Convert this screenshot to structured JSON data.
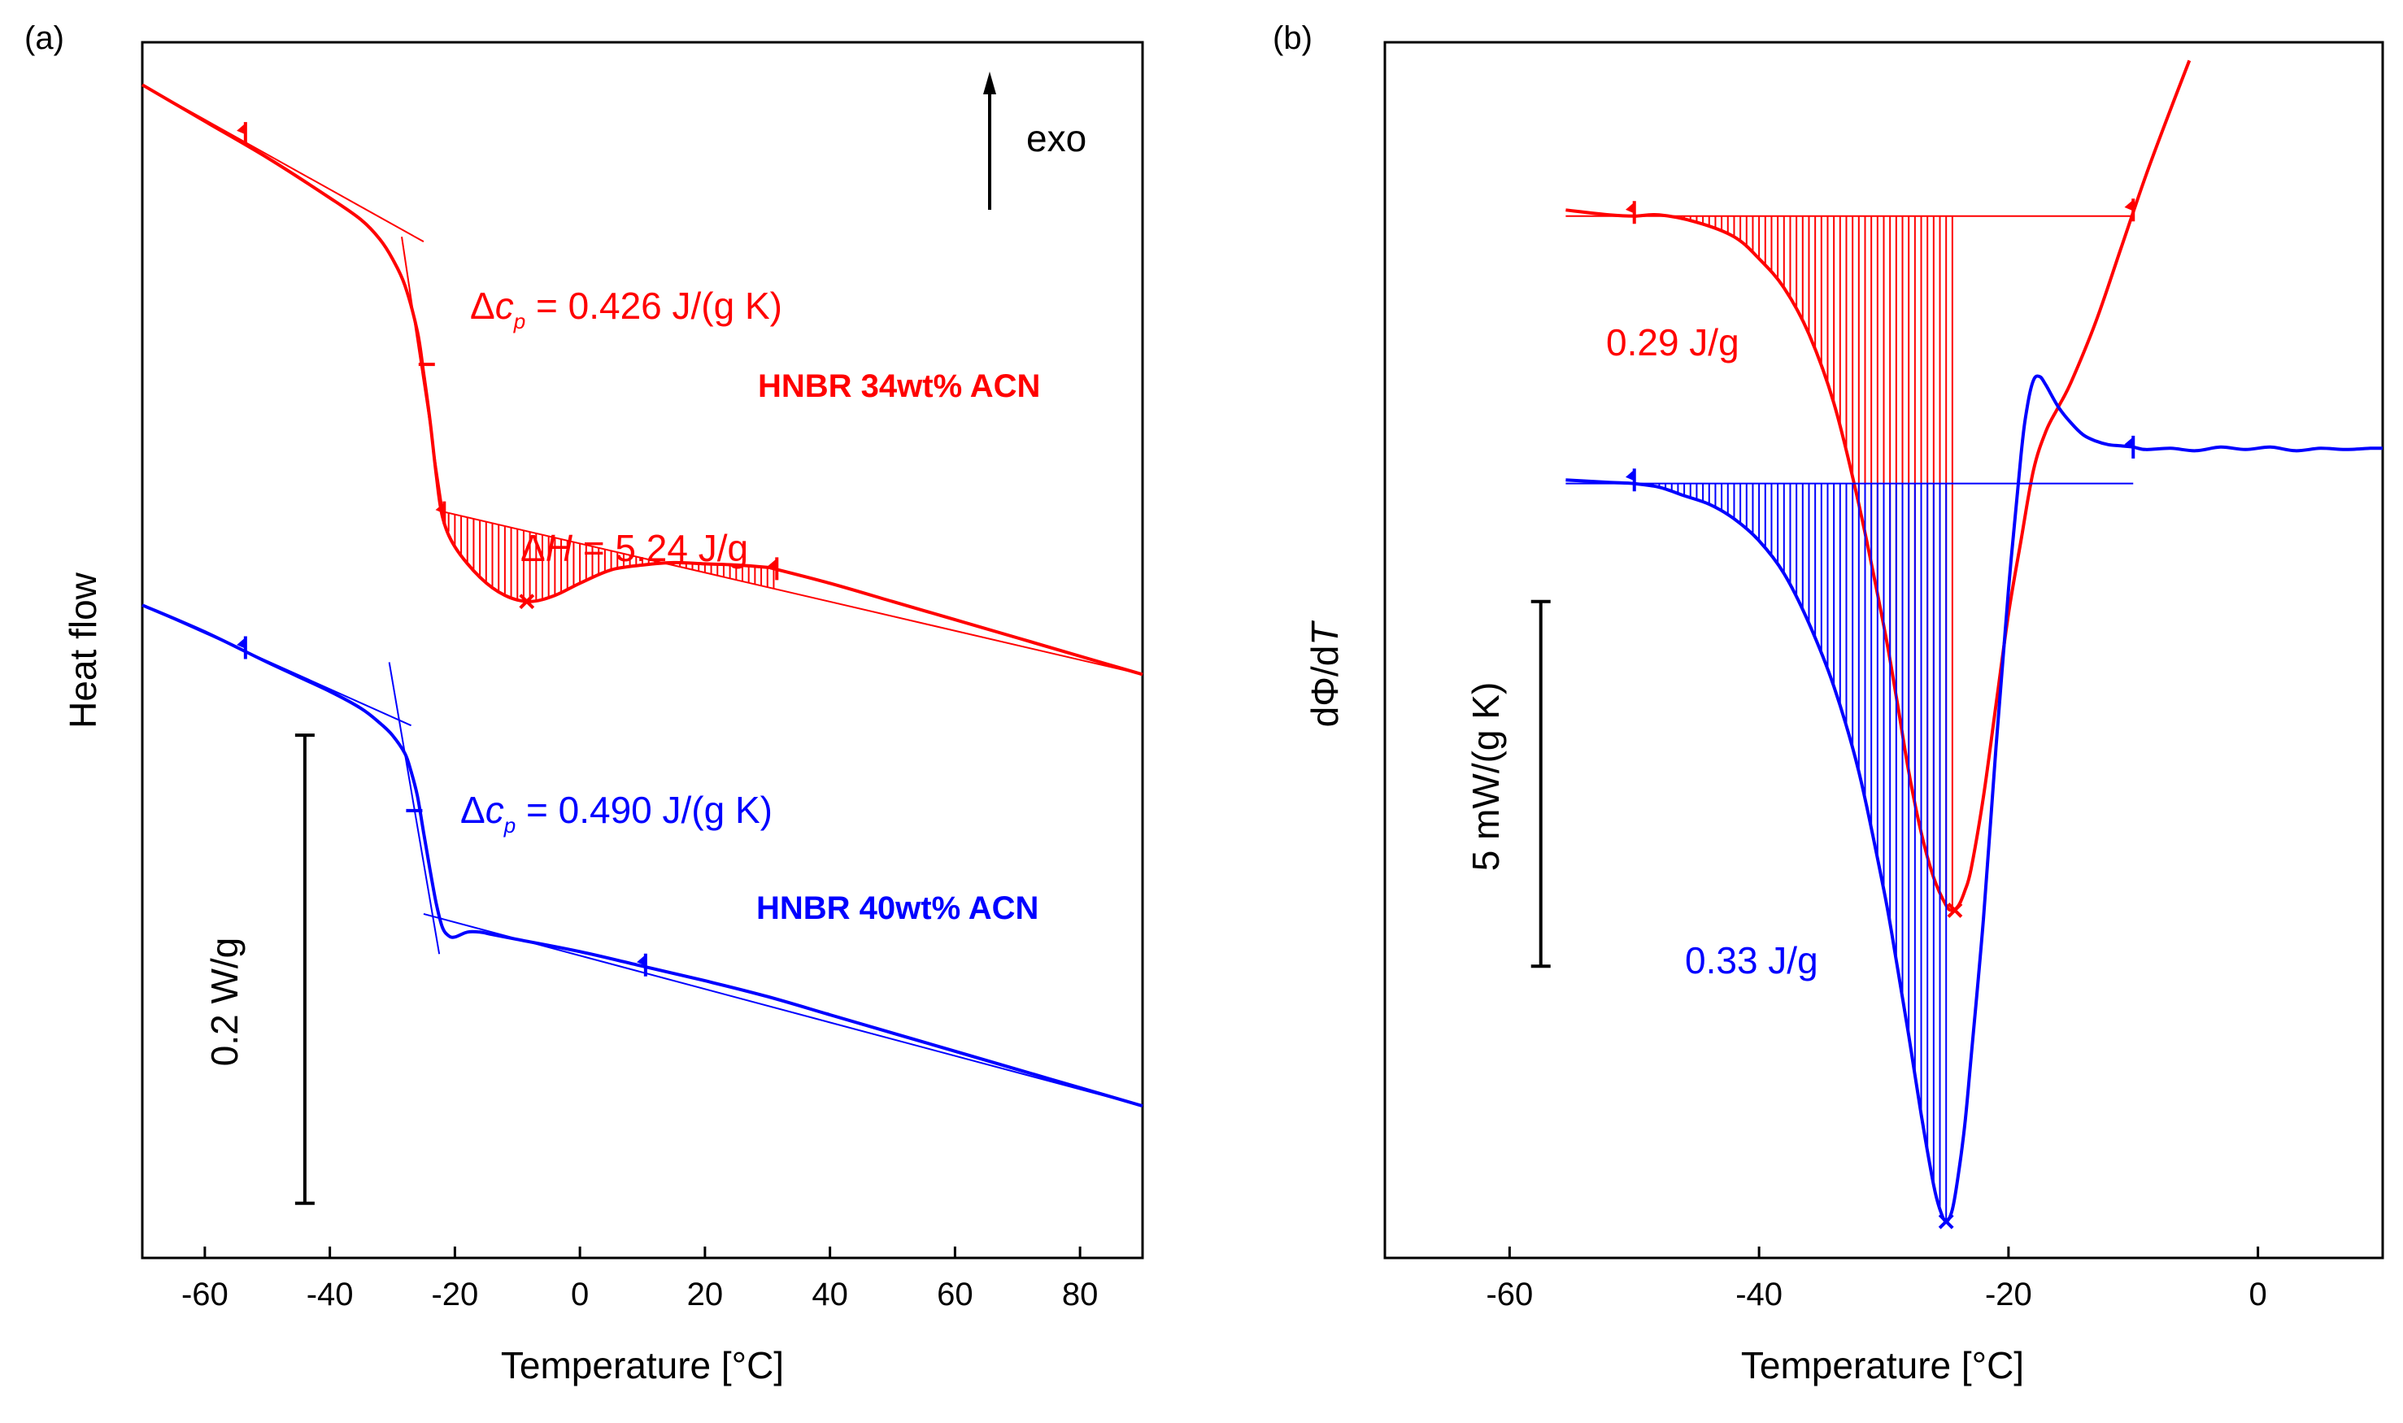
{
  "chart_data": [
    {
      "id": "a",
      "panel_label": "(a)",
      "type": "line",
      "xlabel": "Temperature [°C]",
      "ylabel": "Heat flow",
      "xlim": [
        -70,
        90
      ],
      "ylim": [
        0,
        1
      ],
      "xticks": [
        -60,
        -40,
        -20,
        0,
        20,
        40,
        60,
        80
      ],
      "xtick_labels": [
        "-60",
        "-40",
        "-20",
        "0",
        "20",
        "40",
        "60",
        "80"
      ],
      "exo_label": "exo",
      "scale_bar": {
        "label": "0.2 W/g",
        "from": 0.045,
        "to": 0.43,
        "x": -44
      },
      "series": [
        {
          "name": "HNBR 34wt% ACN",
          "color": "#ff0000",
          "x": [
            -70,
            -60,
            -50,
            -40,
            -35,
            -32,
            -30,
            -28,
            -26,
            -25,
            -24,
            -23,
            -22,
            -20,
            -16,
            -12,
            -8,
            -4,
            0,
            5,
            10,
            15,
            20,
            25,
            30,
            31,
            40,
            50,
            60,
            70,
            80,
            90
          ],
          "y": [
            0.965,
            0.935,
            0.905,
            0.872,
            0.854,
            0.838,
            0.822,
            0.8,
            0.762,
            0.728,
            0.69,
            0.645,
            0.61,
            0.585,
            0.56,
            0.545,
            0.54,
            0.545,
            0.555,
            0.566,
            0.57,
            0.572,
            0.571,
            0.57,
            0.568,
            0.567,
            0.555,
            0.54,
            0.525,
            0.51,
            0.495,
            0.48
          ],
          "baselines": [
            {
              "x": [
                -70,
                -25
              ],
              "y": [
                0.965,
                0.836
              ]
            },
            {
              "x": [
                -22,
                90
              ],
              "y": [
                0.614,
                0.48
              ]
            },
            {
              "x": [
                -28.5,
                -21.5
              ],
              "y": [
                0.84,
                0.6
              ]
            }
          ],
          "hatch_region": {
            "x_from": -22,
            "x_to": 31,
            "baseline_series": 1
          },
          "markers": [
            {
              "x": -53.5,
              "y": 0.925,
              "type": "flag"
            },
            {
              "x": -24.5,
              "y": 0.735,
              "type": "tick"
            },
            {
              "x": -21.7,
              "y": 0.613,
              "type": "flag"
            },
            {
              "x": -8.5,
              "y": 0.54,
              "type": "cross"
            },
            {
              "x": 31.5,
              "y": 0.567,
              "type": "flag"
            }
          ],
          "annotations": {
            "delta_cp": {
              "symbol": "Δ",
              "var": "c",
              "sub": "p",
              "value": " = 0.426 J/(g K)"
            },
            "delta_h": {
              "symbol": "Δ",
              "var": "H",
              "value": " = 5.24 J/g"
            },
            "sample": "HNBR 34wt% ACN"
          }
        },
        {
          "name": "HNBR 40wt% ACN",
          "color": "#0000ff",
          "x": [
            -70,
            -60,
            -50,
            -40,
            -35,
            -32,
            -30,
            -28,
            -27,
            -26,
            -25,
            -24,
            -23,
            -22,
            -21,
            -20,
            -18,
            -16,
            -14,
            -10,
            0,
            10,
            20,
            30,
            40,
            50,
            60,
            70,
            80,
            90
          ],
          "y": [
            0.537,
            0.515,
            0.49,
            0.466,
            0.452,
            0.44,
            0.43,
            0.415,
            0.4,
            0.38,
            0.35,
            0.32,
            0.292,
            0.272,
            0.265,
            0.264,
            0.268,
            0.268,
            0.266,
            0.262,
            0.252,
            0.24,
            0.228,
            0.215,
            0.2,
            0.185,
            0.17,
            0.155,
            0.14,
            0.125
          ],
          "baselines": [
            {
              "x": [
                -70,
                -27
              ],
              "y": [
                0.537,
                0.438
              ]
            },
            {
              "x": [
                -25,
                90
              ],
              "y": [
                0.283,
                0.125
              ]
            },
            {
              "x": [
                -30.5,
                -22.5
              ],
              "y": [
                0.49,
                0.25
              ]
            }
          ],
          "markers": [
            {
              "x": -53.5,
              "y": 0.502,
              "type": "flag"
            },
            {
              "x": -26.5,
              "y": 0.368,
              "type": "tick"
            },
            {
              "x": 10.5,
              "y": 0.241,
              "type": "flag"
            }
          ],
          "annotations": {
            "delta_cp": {
              "symbol": "Δ",
              "var": "c",
              "sub": "p",
              "value": " = 0.490 J/(g K)"
            },
            "sample": "HNBR 40wt% ACN"
          }
        }
      ]
    },
    {
      "id": "b",
      "panel_label": "(b)",
      "type": "line",
      "xlabel": "Temperature [°C]",
      "ylabel": "dΦ/dT",
      "ylabel_parts": {
        "main": "dΦ/d",
        "italic": "T"
      },
      "xlim": [
        -70,
        10
      ],
      "ylim": [
        0,
        1
      ],
      "xticks": [
        -60,
        -40,
        -20,
        0
      ],
      "xtick_labels": [
        "-60",
        "-40",
        "-20",
        "0"
      ],
      "scale_bar": {
        "label": "5 mW/(g K)",
        "from": 0.24,
        "to": 0.54,
        "x": -57.5
      },
      "series": [
        {
          "name": "HNBR 34wt% ACN",
          "color": "#ff0000",
          "x": [
            -55.5,
            -52,
            -50,
            -48,
            -45,
            -42,
            -40,
            -38,
            -36,
            -34,
            -32,
            -30,
            -29,
            -28,
            -27,
            -26,
            -25,
            -24.5,
            -24,
            -23.5,
            -23,
            -22,
            -21,
            -20,
            -19,
            -18,
            -17,
            -16,
            -15,
            -13,
            -11,
            -9,
            -7,
            -5.5
          ],
          "y": [
            0.862,
            0.858,
            0.857,
            0.858,
            0.852,
            0.84,
            0.822,
            0.798,
            0.76,
            0.703,
            0.62,
            0.52,
            0.462,
            0.4,
            0.35,
            0.313,
            0.29,
            0.286,
            0.29,
            0.302,
            0.32,
            0.38,
            0.455,
            0.53,
            0.59,
            0.648,
            0.68,
            0.7,
            0.72,
            0.77,
            0.83,
            0.89,
            0.945,
            0.985
          ],
          "baseline": {
            "x": [
              -55.5,
              -10
            ],
            "y": [
              0.857,
              0.857
            ]
          },
          "hatch_region": {
            "x_from": -50,
            "x_to": -24.2
          },
          "markers": [
            {
              "x": -50,
              "y": 0.86,
              "type": "flag"
            },
            {
              "x": -10,
              "y": 0.862,
              "type": "flag"
            },
            {
              "x": -24.3,
              "y": 0.286,
              "type": "cross"
            }
          ],
          "area_label": "0.29 J/g"
        },
        {
          "name": "HNBR 40wt% ACN",
          "color": "#0000ff",
          "x": [
            -55.5,
            -52,
            -50,
            -48,
            -46,
            -44,
            -42,
            -40,
            -38,
            -36,
            -34,
            -32,
            -30,
            -29,
            -28,
            -27,
            -26,
            -25.5,
            -25,
            -24.5,
            -24,
            -23.5,
            -23,
            -22,
            -21,
            -20,
            -19,
            -18.5,
            -18,
            -17.5,
            -17,
            -16,
            -15,
            -14,
            -13,
            -12,
            -11,
            -10,
            -9,
            -7,
            -5,
            -3,
            -1,
            1,
            3,
            5,
            7,
            9,
            10
          ],
          "y": [
            0.64,
            0.638,
            0.637,
            0.634,
            0.627,
            0.62,
            0.608,
            0.59,
            0.563,
            0.522,
            0.47,
            0.4,
            0.303,
            0.245,
            0.183,
            0.118,
            0.06,
            0.04,
            0.03,
            0.04,
            0.07,
            0.11,
            0.165,
            0.28,
            0.42,
            0.55,
            0.66,
            0.7,
            0.722,
            0.725,
            0.718,
            0.7,
            0.687,
            0.677,
            0.672,
            0.669,
            0.668,
            0.667,
            0.665,
            0.666,
            0.664,
            0.667,
            0.665,
            0.667,
            0.664,
            0.666,
            0.665,
            0.666,
            0.666
          ],
          "baseline": {
            "x": [
              -55.5,
              -10
            ],
            "y": [
              0.637,
              0.637
            ]
          },
          "hatch_region": {
            "x_from": -50,
            "x_to": -25
          },
          "markers": [
            {
              "x": -50,
              "y": 0.64,
              "type": "flag"
            },
            {
              "x": -10,
              "y": 0.667,
              "type": "flag"
            },
            {
              "x": -25,
              "y": 0.03,
              "type": "cross"
            }
          ],
          "area_label": "0.33 J/g"
        }
      ]
    }
  ]
}
